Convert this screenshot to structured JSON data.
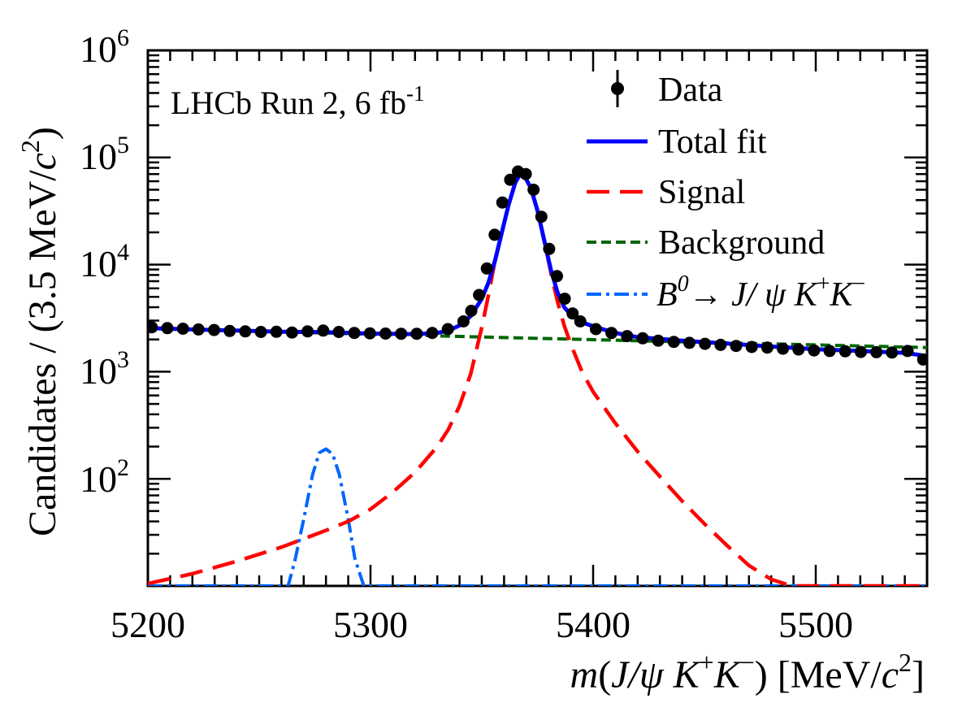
{
  "chart_data": {
    "type": "line",
    "yscale": "log",
    "xlabel_parts": {
      "m": "m",
      "open": "(",
      "jpsi": "J/",
      "psi": "ψ",
      "K1": " K",
      "plus": "+",
      "K2": "K",
      "minus": "−",
      "close": ")",
      "units_open": " [MeV/",
      "c": "c",
      "sq": "2",
      "units_close": "]"
    },
    "ylabel_parts": {
      "main": "Candidates / (3.5 MeV/",
      "c": "c",
      "sq": "2",
      "close": ")"
    },
    "annotation": {
      "main": "LHCb Run 2, 6 fb",
      "sup": "-1"
    },
    "xlim": [
      5200,
      5550
    ],
    "ylim": [
      10,
      1000000
    ],
    "x_ticks": [
      5200,
      5300,
      5400,
      5500
    ],
    "x_tick_labels": [
      "5200",
      "5300",
      "5400",
      "5500"
    ],
    "y_ticks": [
      100,
      1000,
      10000,
      100000,
      1000000
    ],
    "y_tick_labels": [
      {
        "base": "10",
        "exp": "2"
      },
      {
        "base": "10",
        "exp": "3"
      },
      {
        "base": "10",
        "exp": "4"
      },
      {
        "base": "10",
        "exp": "5"
      },
      {
        "base": "10",
        "exp": "6"
      }
    ],
    "legend": [
      {
        "key": "data",
        "label": "Data",
        "style": "marker",
        "color": "#000000"
      },
      {
        "key": "total",
        "label": "Total fit",
        "style": "solid",
        "color": "#0000ff"
      },
      {
        "key": "signal",
        "label": "Signal",
        "style": "longdash",
        "color": "#ff0000"
      },
      {
        "key": "background",
        "label": "Background",
        "style": "dotted",
        "color": "#006600"
      },
      {
        "key": "b0",
        "style": "dashdot",
        "color": "#0066ff",
        "label_parts": {
          "B": "B",
          "zero": "0",
          "arrow": "→ ",
          "jpsi": "J/ ",
          "psi": "ψ",
          "K1": " K",
          "plus": "+",
          "K2": "K",
          "minus": "−"
        }
      }
    ],
    "data_points": {
      "x": [
        5201.75,
        5208.75,
        5215.75,
        5222.75,
        5229.75,
        5236.75,
        5243.75,
        5250.75,
        5257.75,
        5264.75,
        5271.75,
        5278.75,
        5285.75,
        5292.75,
        5299.75,
        5306.75,
        5313.75,
        5320.75,
        5327.75,
        5334.75,
        5341.75,
        5345.25,
        5348.75,
        5352.25,
        5355.75,
        5359.25,
        5362.75,
        5366.25,
        5369.75,
        5373.25,
        5376.75,
        5380.25,
        5383.75,
        5387.25,
        5390.75,
        5394.25,
        5401.25,
        5408.25,
        5415.25,
        5422.25,
        5429.25,
        5436.25,
        5443.25,
        5450.25,
        5457.25,
        5464.25,
        5471.25,
        5478.25,
        5485.25,
        5492.25,
        5499.25,
        5506.25,
        5513.25,
        5520.25,
        5527.25,
        5534.25,
        5541.25,
        5548.25
      ],
      "y": [
        2600,
        2550,
        2520,
        2480,
        2450,
        2400,
        2380,
        2350,
        2360,
        2320,
        2380,
        2420,
        2350,
        2300,
        2280,
        2270,
        2260,
        2260,
        2300,
        2500,
        2950,
        3700,
        5200,
        9200,
        19000,
        38000,
        62000,
        74000,
        70000,
        50000,
        28000,
        14000,
        7800,
        4800,
        3500,
        2950,
        2500,
        2300,
        2150,
        2050,
        1950,
        1900,
        1860,
        1820,
        1780,
        1740,
        1700,
        1680,
        1640,
        1610,
        1580,
        1560,
        1550,
        1530,
        1520,
        1510,
        1560,
        1300
      ]
    },
    "series": [
      {
        "name": "Total fit",
        "color": "#0000ff",
        "width": 5,
        "x": [
          5200,
          5220,
          5240,
          5260,
          5280,
          5300,
          5320,
          5330,
          5335,
          5340,
          5345,
          5350,
          5353,
          5356,
          5359,
          5362,
          5365,
          5367,
          5369,
          5372,
          5375,
          5378,
          5381,
          5384,
          5387,
          5390,
          5395,
          5400,
          5410,
          5420,
          5440,
          5460,
          5480,
          5500,
          5520,
          5540,
          5550
        ],
        "y": [
          2550,
          2480,
          2420,
          2360,
          2340,
          2270,
          2240,
          2300,
          2420,
          2700,
          3300,
          4800,
          6800,
          11000,
          20000,
          36000,
          58000,
          69000,
          68000,
          52000,
          32000,
          17000,
          9000,
          5500,
          4000,
          3400,
          2900,
          2650,
          2300,
          2100,
          1950,
          1830,
          1720,
          1620,
          1560,
          1500,
          1400
        ]
      },
      {
        "name": "Signal",
        "color": "#ff0000",
        "width": 4.5,
        "dash": "28 13",
        "x": [
          5200,
          5220,
          5240,
          5260,
          5280,
          5290,
          5300,
          5310,
          5320,
          5330,
          5335,
          5340,
          5345,
          5350,
          5353,
          5356,
          5359,
          5362,
          5365,
          5367,
          5369,
          5372,
          5375,
          5378,
          5381,
          5384,
          5387,
          5390,
          5395,
          5400,
          5410,
          5420,
          5430,
          5440,
          5450,
          5460,
          5470,
          5480,
          5488,
          5492,
          5500,
          5550
        ],
        "y": [
          10.5,
          13,
          17,
          23,
          33,
          40,
          52,
          75,
          115,
          200,
          290,
          480,
          950,
          2600,
          5200,
          11000,
          20000,
          36000,
          58000,
          69000,
          68000,
          52000,
          32000,
          17000,
          8500,
          4500,
          2700,
          1800,
          1000,
          650,
          330,
          180,
          105,
          62,
          38,
          24,
          15.5,
          11.5,
          10.2,
          10,
          10,
          10
        ]
      },
      {
        "name": "Background",
        "color": "#006600",
        "width": 4,
        "dash": "12 6",
        "x": [
          5200,
          5250,
          5300,
          5350,
          5400,
          5450,
          5500,
          5550
        ],
        "y": [
          2550,
          2380,
          2240,
          2110,
          1990,
          1880,
          1780,
          1680
        ]
      },
      {
        "name": "B0 → J/ψ K+K−",
        "color": "#0066ff",
        "width": 4,
        "dash": "18 6 4 6",
        "x": [
          5200,
          5263,
          5266,
          5270,
          5274,
          5277,
          5280,
          5283,
          5286,
          5290,
          5293,
          5297,
          5300,
          5550
        ],
        "y": [
          10,
          10,
          17,
          42,
          110,
          175,
          190,
          170,
          110,
          42,
          18,
          10,
          10,
          10
        ]
      }
    ]
  }
}
